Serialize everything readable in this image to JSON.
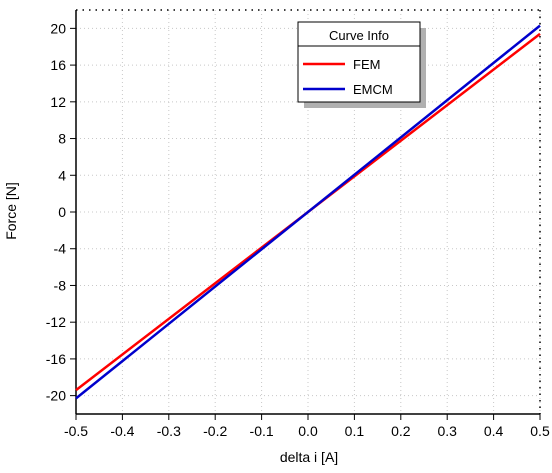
{
  "chart_data": {
    "type": "line",
    "xlabel": "delta i [A]",
    "ylabel": "Force [N]",
    "xlim": [
      -0.5,
      0.5
    ],
    "ylim": [
      -22,
      22
    ],
    "x_ticks": [
      -0.5,
      -0.4,
      -0.3,
      -0.2,
      -0.1,
      0.0,
      0.1,
      0.2,
      0.3,
      0.4,
      0.5
    ],
    "x_tick_labels": [
      "-0.5",
      "-0.4",
      "-0.3",
      "-0.2",
      "-0.1",
      "0.0",
      "0.1",
      "0.2",
      "0.3",
      "0.4",
      "0.5"
    ],
    "y_ticks": [
      -20,
      -16,
      -12,
      -8,
      -4,
      0,
      4,
      8,
      12,
      16,
      20
    ],
    "y_tick_labels": [
      "-20",
      "-16",
      "-12",
      "-8",
      "-4",
      "0",
      "4",
      "8",
      "12",
      "16",
      "20"
    ],
    "grid": true,
    "legend": {
      "title": "Curve Info",
      "placement": "top-right"
    },
    "series": [
      {
        "name": "FEM",
        "color": "#ff0000",
        "x": [
          -0.5,
          0.5
        ],
        "y": [
          -19.4,
          19.4
        ]
      },
      {
        "name": "EMCM",
        "color": "#0000cc",
        "x": [
          -0.5,
          0.5
        ],
        "y": [
          -20.3,
          20.3
        ]
      }
    ]
  }
}
